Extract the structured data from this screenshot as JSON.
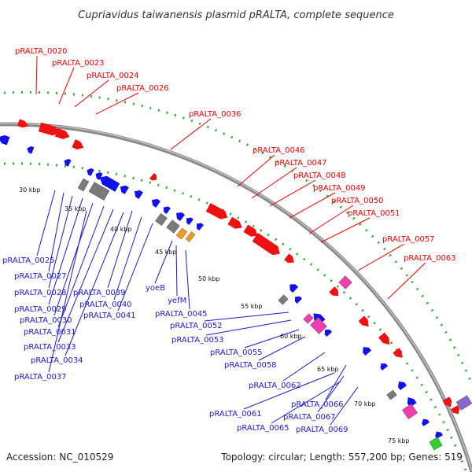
{
  "title": "Cupriavidus taiwanensis plasmid pRALTA, complete sequence",
  "accession": "Accession: NC_010529",
  "summary": "Topology: circular; Length: 557,200 bp; Genes: 519",
  "colors": {
    "forward_label": "#ee0000",
    "reverse_label": "#1a1acc",
    "forward_gene": "#ee1111",
    "reverse_gene": "#1111ee",
    "backbone": "#888888",
    "ruler": "#33aa33",
    "pink_gene": "#ee3fae",
    "gray_gene": "#7a7a7a",
    "orange_gene": "#f29a22",
    "green_gene": "#33cc33",
    "purple_gene": "#8866cc"
  },
  "scale_ticks": [
    "30 kbp",
    "35 kbp",
    "40 kbp",
    "45 kbp",
    "50 kbp",
    "55 kbp",
    "60 kbp",
    "65 kbp",
    "70 kbp",
    "75 kbp"
  ],
  "forward_labels": [
    "pRALTA_0020",
    "pRALTA_0023",
    "pRALTA_0024",
    "pRALTA_0026",
    "pRALTA_0036",
    "pRALTA_0046",
    "pRALTA_0047",
    "pRALTA_0048",
    "pRALTA_0049",
    "pRALTA_0050",
    "pRALTA_0051",
    "pRALTA_0057",
    "pRALTA_0063"
  ],
  "reverse_labels": [
    "pRALTA_0025",
    "pRALTA_0027",
    "pRALTA_0028",
    "pRALTA_0029",
    "pRALTA_0030",
    "pRALTA_0031",
    "pRALTA_0033",
    "pRALTA_0034",
    "pRALTA_0037",
    "pRALTA_0039",
    "pRALTA_0040",
    "pRALTA_0041",
    "yoeB",
    "yefM",
    "pRALTA_0045",
    "pRALTA_0052",
    "pRALTA_0053",
    "pRALTA_0055",
    "pRALTA_0058",
    "pRALTA_0062",
    "pRALTA_0066",
    "pRALTA_0061",
    "pRALTA_0067",
    "pRALTA_0065",
    "pRALTA_0069"
  ]
}
